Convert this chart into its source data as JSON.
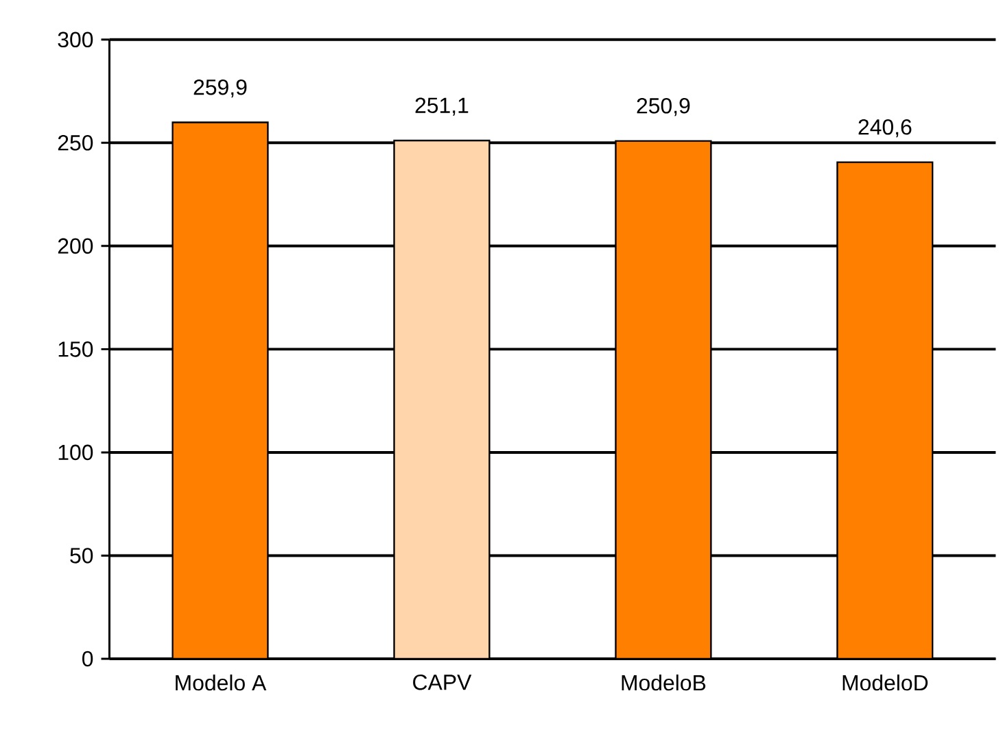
{
  "chart_data": {
    "type": "bar",
    "categories": [
      "Modelo A",
      "CAPV",
      "ModeloB",
      "ModeloD"
    ],
    "values": [
      259.9,
      251.1,
      250.9,
      240.6
    ],
    "colors": [
      "#ff7f00",
      "#ffd6ab",
      "#ff7f00",
      "#ff7f00"
    ],
    "value_labels": [
      "259,9",
      "251,1",
      "250,9",
      "240,6"
    ],
    "ylim": [
      0,
      300
    ],
    "yticks": [
      0,
      50,
      100,
      150,
      200,
      250,
      300
    ],
    "grid": "y"
  }
}
